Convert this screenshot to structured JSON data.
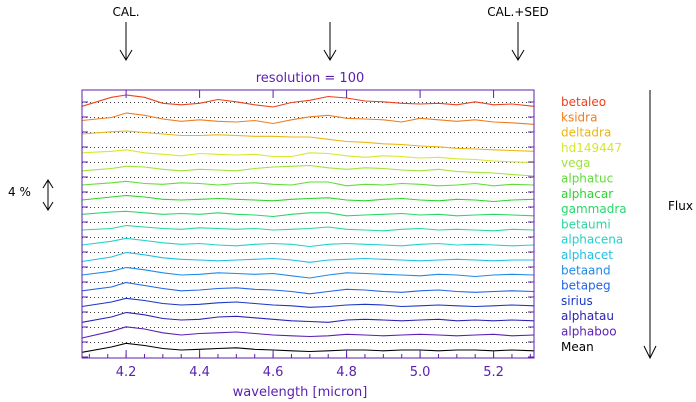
{
  "chart_data": {
    "type": "line",
    "title": "resolution = 100",
    "xlabel": "wavelength [micron]",
    "ylabel": "Flux",
    "xlim": [
      4.08,
      5.31
    ],
    "xticks": [
      4.2,
      4.4,
      4.6,
      4.8,
      5.0,
      5.2
    ],
    "xtick_labels": [
      "4.2",
      "4.4",
      "4.6",
      "4.8",
      "5.0",
      "5.2"
    ],
    "scale_label": "4 %",
    "markers": [
      {
        "label": "CAL.",
        "x": 4.2
      },
      {
        "label": "",
        "x": 4.75
      },
      {
        "label": "CAL.+SED",
        "x": 5.27
      }
    ],
    "offset_step": 1,
    "grid": "dotted horizontal baselines",
    "x": [
      4.08,
      4.16,
      4.2,
      4.25,
      4.3,
      4.35,
      4.4,
      4.45,
      4.5,
      4.55,
      4.6,
      4.65,
      4.7,
      4.75,
      4.8,
      4.85,
      4.9,
      4.95,
      5.0,
      5.05,
      5.1,
      5.15,
      5.2,
      5.25,
      5.31
    ],
    "series": [
      {
        "name": "betaleo",
        "color": "#f0401c",
        "offset": 15,
        "values": [
          0.5,
          1.7,
          2.0,
          1.7,
          0.9,
          0.7,
          0.9,
          1.4,
          1.1,
          0.7,
          0.4,
          1.0,
          1.3,
          1.8,
          1.6,
          1.2,
          1.1,
          0.9,
          0.8,
          0.9,
          0.7,
          1.1,
          0.7,
          0.8,
          0.5
        ]
      },
      {
        "name": "ksidra",
        "color": "#ef7e20",
        "offset": 14,
        "values": [
          0.6,
          1.0,
          1.6,
          1.3,
          0.8,
          0.5,
          0.7,
          0.5,
          0.4,
          0.6,
          0.2,
          0.7,
          1.1,
          1.3,
          0.9,
          0.8,
          0.7,
          0.4,
          0.9,
          0.7,
          0.5,
          0.7,
          0.4,
          0.3,
          0.1
        ]
      },
      {
        "name": "deltadra",
        "color": "#eab713",
        "offset": 13,
        "values": [
          0.8,
          1.1,
          1.2,
          1.0,
          0.8,
          0.6,
          0.6,
          0.7,
          0.6,
          0.5,
          0.5,
          0.4,
          0.4,
          0.1,
          -0.2,
          -0.3,
          -0.5,
          -0.6,
          -0.8,
          -0.9,
          -1.1,
          -1.2,
          -1.3,
          -1.4,
          -1.5
        ]
      },
      {
        "name": "hd149447",
        "color": "#d6e82b",
        "offset": 12,
        "values": [
          0.3,
          0.5,
          0.7,
          0.3,
          0.1,
          -0.1,
          0.2,
          0.1,
          0.0,
          0.1,
          -0.2,
          -0.2,
          0.3,
          0.2,
          -0.1,
          -0.3,
          -0.1,
          -0.2,
          -0.4,
          -0.3,
          -0.5,
          -0.6,
          -0.8,
          -0.9,
          -1.0
        ]
      },
      {
        "name": "vega",
        "color": "#9ee33a",
        "offset": 11,
        "values": [
          -0.1,
          0.2,
          0.5,
          0.4,
          0.1,
          -0.1,
          0.1,
          0.0,
          -0.1,
          0.2,
          0.4,
          0.5,
          0.6,
          0.3,
          0.1,
          0.3,
          0.2,
          0.0,
          -0.1,
          0.1,
          -0.2,
          -0.3,
          -0.4,
          -0.6,
          -0.8
        ]
      },
      {
        "name": "alphatuc",
        "color": "#61dc3a",
        "offset": 10,
        "values": [
          0.0,
          0.3,
          0.5,
          0.2,
          0.1,
          0.3,
          0.2,
          0.0,
          0.2,
          0.3,
          0.1,
          0.0,
          0.4,
          0.4,
          -0.1,
          0.1,
          0.0,
          0.2,
          0.1,
          -0.1,
          0.0,
          0.2,
          -0.1,
          0.1,
          0.0
        ]
      },
      {
        "name": "alphacar",
        "color": "#2fd32e",
        "offset": 9,
        "values": [
          0.0,
          0.4,
          0.6,
          0.4,
          0.1,
          0.0,
          0.1,
          0.2,
          0.1,
          0.0,
          -0.1,
          0.1,
          0.2,
          0.3,
          0.0,
          -0.1,
          0.1,
          0.2,
          0.0,
          -0.1,
          0.1,
          0.0,
          -0.2,
          0.0,
          0.1
        ]
      },
      {
        "name": "gammadra",
        "color": "#2ad66b",
        "offset": 8,
        "values": [
          0.1,
          0.4,
          0.5,
          0.3,
          0.1,
          0.2,
          0.1,
          0.3,
          0.1,
          0.0,
          -0.2,
          0.1,
          0.3,
          0.3,
          -0.1,
          0.0,
          0.1,
          0.2,
          0.0,
          0.1,
          -0.1,
          0.0,
          0.1,
          0.0,
          -0.1
        ]
      },
      {
        "name": "betaumi",
        "color": "#2ad6a0",
        "offset": 7,
        "values": [
          0.0,
          0.2,
          0.6,
          0.4,
          0.2,
          0.1,
          0.3,
          0.2,
          0.1,
          0.2,
          0.0,
          0.1,
          0.2,
          0.4,
          0.1,
          0.0,
          -0.1,
          0.1,
          0.2,
          0.0,
          0.1,
          0.0,
          -0.1,
          0.1,
          0.0
        ]
      },
      {
        "name": "alphacena",
        "color": "#24d1cc",
        "offset": 6,
        "values": [
          0.0,
          0.5,
          0.9,
          0.6,
          0.3,
          0.1,
          0.2,
          0.0,
          -0.1,
          0.1,
          0.2,
          0.1,
          -0.2,
          0.1,
          0.2,
          0.1,
          0.0,
          -0.1,
          0.1,
          0.2,
          0.0,
          0.1,
          0.0,
          -0.1,
          0.0
        ]
      },
      {
        "name": "alphacet",
        "color": "#22bfe3",
        "offset": 5,
        "values": [
          -0.2,
          0.4,
          1.0,
          0.7,
          0.3,
          0.1,
          0.0,
          -0.1,
          0.0,
          0.1,
          0.2,
          0.0,
          -0.3,
          0.0,
          0.1,
          0.2,
          0.1,
          0.0,
          -0.1,
          0.0,
          0.1,
          0.0,
          -0.1,
          0.0,
          0.0
        ]
      },
      {
        "name": "betaand",
        "color": "#1f8be6",
        "offset": 4,
        "values": [
          0.0,
          0.5,
          1.0,
          0.7,
          0.3,
          0.0,
          0.1,
          0.3,
          0.2,
          0.1,
          0.2,
          -0.1,
          -0.4,
          0.0,
          0.3,
          0.2,
          0.1,
          0.0,
          -0.1,
          0.1,
          0.0,
          -0.2,
          0.0,
          0.1,
          0.0
        ]
      },
      {
        "name": "betapeg",
        "color": "#2364e6",
        "offset": 3,
        "values": [
          -0.1,
          0.4,
          1.0,
          0.6,
          0.2,
          -0.1,
          0.0,
          0.2,
          0.3,
          0.1,
          0.0,
          -0.2,
          -0.5,
          -0.2,
          0.1,
          0.0,
          -0.2,
          -0.3,
          -0.1,
          0.0,
          -0.2,
          -0.3,
          -0.2,
          -0.1,
          -0.2
        ]
      },
      {
        "name": "sirius",
        "color": "#1a36c8",
        "offset": 2,
        "values": [
          -0.2,
          0.4,
          0.9,
          0.6,
          0.2,
          0.0,
          0.1,
          0.3,
          0.4,
          0.2,
          0.0,
          -0.1,
          -0.3,
          -0.2,
          0.0,
          0.1,
          0.0,
          -0.2,
          -0.1,
          0.0,
          -0.1,
          -0.2,
          -0.1,
          0.0,
          -0.1
        ]
      },
      {
        "name": "alphatau",
        "color": "#2d22b5",
        "offset": 1,
        "values": [
          -0.3,
          0.4,
          1.0,
          0.7,
          0.2,
          0.0,
          0.1,
          0.4,
          0.5,
          0.3,
          0.1,
          -0.1,
          -0.2,
          -0.3,
          0.0,
          0.1,
          0.0,
          -0.1,
          0.0,
          0.1,
          -0.1,
          0.0,
          -0.1,
          0.0,
          -0.1
        ]
      },
      {
        "name": "alphaboo",
        "color": "#5a1fb4",
        "offset": 0,
        "values": [
          -0.4,
          0.5,
          1.1,
          0.8,
          0.3,
          0.0,
          0.2,
          0.3,
          0.4,
          0.2,
          0.0,
          -0.1,
          -0.2,
          -0.1,
          0.1,
          0.0,
          -0.1,
          0.0,
          0.1,
          0.0,
          -0.1,
          0.0,
          0.1,
          -0.1,
          0.0
        ]
      },
      {
        "name": "Mean",
        "color": "#000000",
        "offset": -1,
        "values": [
          -0.3,
          0.4,
          0.9,
          0.6,
          0.2,
          0.0,
          0.1,
          0.2,
          0.3,
          0.1,
          0.0,
          -0.1,
          -0.2,
          -0.1,
          0.0,
          0.0,
          -0.1,
          0.0,
          0.0,
          -0.1,
          0.0,
          0.0,
          -0.1,
          0.0,
          -0.1
        ]
      }
    ]
  },
  "colors": {
    "frame": "#5b1fb0",
    "axis_text": "#5b1fb0",
    "grid": "#000000"
  }
}
